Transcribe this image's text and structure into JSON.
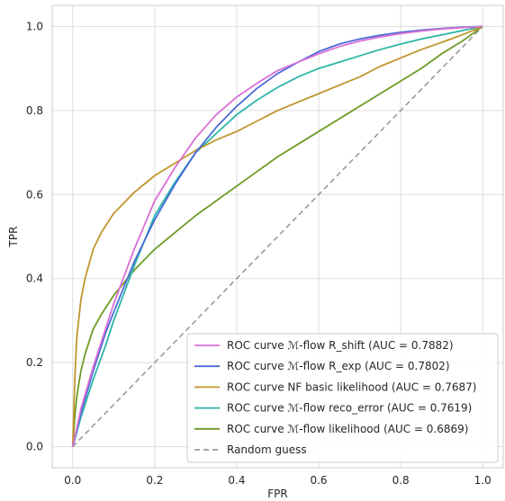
{
  "chart_data": {
    "type": "line",
    "title": "",
    "xlabel": "FPR",
    "ylabel": "TPR",
    "xlim": [
      -0.05,
      1.05
    ],
    "ylim": [
      -0.05,
      1.05
    ],
    "xticks": [
      0.0,
      0.2,
      0.4,
      0.6,
      0.8,
      1.0
    ],
    "yticks": [
      0.0,
      0.2,
      0.4,
      0.6,
      0.8,
      1.0
    ],
    "xtick_labels": [
      "0.0",
      "0.2",
      "0.4",
      "0.6",
      "0.8",
      "1.0"
    ],
    "ytick_labels": [
      "0.0",
      "0.2",
      "0.4",
      "0.6",
      "0.8",
      "1.0"
    ],
    "grid": true,
    "legend_position": "lower-right",
    "series": [
      {
        "name": "ROC curve ℳ-flow R_shift (AUC = 0.7882)",
        "color": "#da70d6",
        "x": [
          0,
          0.02,
          0.05,
          0.08,
          0.1,
          0.15,
          0.2,
          0.25,
          0.3,
          0.35,
          0.4,
          0.45,
          0.5,
          0.55,
          0.6,
          0.65,
          0.7,
          0.75,
          0.8,
          0.85,
          0.9,
          0.95,
          1.0
        ],
        "y": [
          0,
          0.09,
          0.19,
          0.28,
          0.34,
          0.47,
          0.585,
          0.665,
          0.735,
          0.79,
          0.832,
          0.865,
          0.895,
          0.915,
          0.935,
          0.952,
          0.965,
          0.975,
          0.983,
          0.989,
          0.994,
          0.997,
          1.0
        ]
      },
      {
        "name": "ROC curve ℳ-flow R_exp (AUC = 0.7802)",
        "color": "#4b6bd8",
        "x": [
          0,
          0.02,
          0.05,
          0.08,
          0.1,
          0.15,
          0.2,
          0.25,
          0.3,
          0.35,
          0.4,
          0.45,
          0.5,
          0.55,
          0.6,
          0.65,
          0.7,
          0.75,
          0.8,
          0.85,
          0.9,
          0.95,
          1.0
        ],
        "y": [
          0,
          0.08,
          0.18,
          0.27,
          0.32,
          0.44,
          0.54,
          0.625,
          0.7,
          0.76,
          0.81,
          0.853,
          0.888,
          0.915,
          0.94,
          0.958,
          0.97,
          0.979,
          0.986,
          0.991,
          0.995,
          0.998,
          1.0
        ]
      },
      {
        "name": "ROC curve NF basic likelihood (AUC = 0.7687)",
        "color": "#c0962e",
        "x": [
          0,
          0.005,
          0.01,
          0.02,
          0.03,
          0.05,
          0.07,
          0.1,
          0.15,
          0.2,
          0.25,
          0.3,
          0.35,
          0.4,
          0.45,
          0.5,
          0.55,
          0.6,
          0.65,
          0.7,
          0.75,
          0.8,
          0.85,
          0.9,
          0.95,
          1.0
        ],
        "y": [
          0,
          0.16,
          0.26,
          0.35,
          0.4,
          0.47,
          0.51,
          0.555,
          0.605,
          0.645,
          0.675,
          0.705,
          0.73,
          0.75,
          0.775,
          0.8,
          0.82,
          0.84,
          0.86,
          0.88,
          0.905,
          0.925,
          0.945,
          0.962,
          0.98,
          1.0
        ]
      },
      {
        "name": "ROC curve ℳ-flow reco_error (AUC = 0.7619)",
        "color": "#2cb5a8",
        "x": [
          0,
          0.02,
          0.05,
          0.08,
          0.1,
          0.15,
          0.2,
          0.25,
          0.3,
          0.35,
          0.4,
          0.45,
          0.5,
          0.55,
          0.6,
          0.65,
          0.7,
          0.75,
          0.8,
          0.85,
          0.9,
          0.95,
          1.0
        ],
        "y": [
          0,
          0.07,
          0.16,
          0.24,
          0.3,
          0.43,
          0.55,
          0.63,
          0.7,
          0.745,
          0.79,
          0.825,
          0.855,
          0.88,
          0.9,
          0.915,
          0.93,
          0.945,
          0.958,
          0.97,
          0.98,
          0.99,
          1.0
        ]
      },
      {
        "name": "ROC curve ℳ-flow likelihood (AUC = 0.6869)",
        "color": "#6e9a26",
        "x": [
          0,
          0.005,
          0.01,
          0.02,
          0.03,
          0.05,
          0.07,
          0.1,
          0.15,
          0.2,
          0.25,
          0.3,
          0.35,
          0.4,
          0.45,
          0.5,
          0.55,
          0.6,
          0.65,
          0.7,
          0.75,
          0.8,
          0.85,
          0.9,
          0.95,
          1.0
        ],
        "y": [
          0,
          0.07,
          0.12,
          0.18,
          0.22,
          0.28,
          0.315,
          0.36,
          0.42,
          0.47,
          0.51,
          0.55,
          0.585,
          0.62,
          0.655,
          0.69,
          0.72,
          0.75,
          0.78,
          0.81,
          0.84,
          0.87,
          0.9,
          0.935,
          0.965,
          1.0
        ]
      },
      {
        "name": "Random guess",
        "color": "#999999",
        "dashed": true,
        "x": [
          0,
          1
        ],
        "y": [
          0,
          1
        ]
      }
    ]
  }
}
